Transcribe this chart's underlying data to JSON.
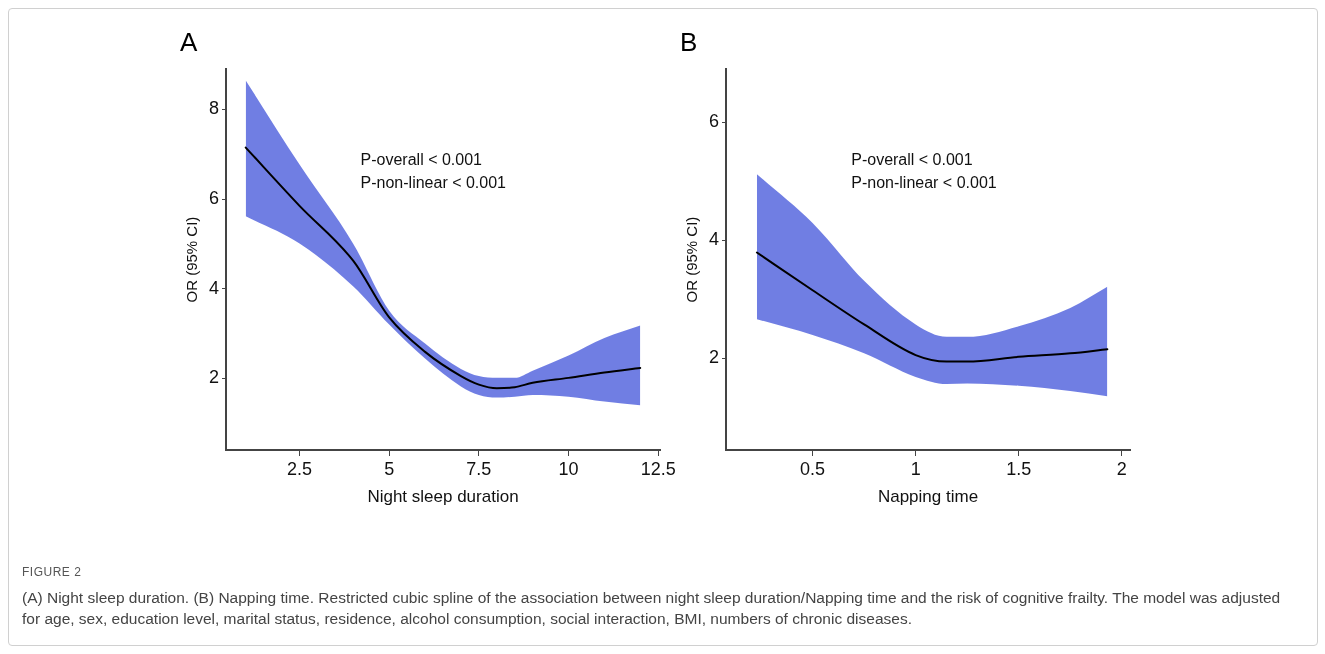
{
  "chart_data": [
    {
      "type": "line",
      "title": "A",
      "xlabel": "Night sleep duration",
      "ylabel": "OR (95% CI)",
      "xlim": [
        0.45,
        12.55
      ],
      "xticks": [
        2.5,
        5,
        7.5,
        10,
        12.5
      ],
      "ylim": [
        0.4,
        8.9
      ],
      "yticks": [
        2,
        4,
        6,
        8
      ],
      "grid": false,
      "legend": false,
      "marker": "none",
      "line_style": "solid",
      "x": [
        1,
        2.5,
        4,
        5,
        6,
        7,
        7.5,
        8,
        8.5,
        9,
        10,
        11,
        12
      ],
      "series": [
        {
          "color": "#000000",
          "values": [
            7.15,
            5.85,
            4.62,
            3.36,
            2.59,
            2.05,
            1.86,
            1.78,
            1.8,
            1.9,
            2.01,
            2.13,
            2.23
          ],
          "lower": [
            5.62,
            5.01,
            4.05,
            3.2,
            2.44,
            1.82,
            1.63,
            1.57,
            1.59,
            1.63,
            1.59,
            1.48,
            1.4
          ],
          "upper": [
            8.65,
            6.77,
            5.0,
            3.51,
            2.78,
            2.21,
            2.05,
            2.01,
            2.01,
            2.17,
            2.51,
            2.9,
            3.18
          ]
        }
      ],
      "annotations": [
        "P-overall < 0.001",
        "P-non-linear < 0.001"
      ]
    },
    {
      "type": "line",
      "title": "B",
      "xlabel": "Napping time",
      "ylabel": "OR (95% CI)",
      "xlim": [
        0.08,
        2.04
      ],
      "xticks": [
        0.5,
        1,
        1.5,
        2
      ],
      "ylim": [
        0.44,
        6.9
      ],
      "yticks": [
        2,
        4,
        6
      ],
      "grid": false,
      "legend": false,
      "marker": "none",
      "line_style": "solid",
      "x": [
        0.23,
        0.5,
        0.75,
        1,
        1.15,
        1.25,
        1.5,
        1.75,
        1.93
      ],
      "series": [
        {
          "color": "#000000",
          "values": [
            3.79,
            3.15,
            2.57,
            2.05,
            1.94,
            1.94,
            2.02,
            2.08,
            2.15
          ],
          "lower": [
            2.66,
            2.39,
            2.08,
            1.68,
            1.56,
            1.57,
            1.53,
            1.44,
            1.35
          ],
          "upper": [
            5.12,
            4.29,
            3.31,
            2.57,
            2.36,
            2.36,
            2.54,
            2.85,
            3.21
          ]
        }
      ],
      "annotations": [
        "P-overall < 0.001",
        "P-non-linear < 0.001",
        "FIGURE 2",
        "(A) Night sleep duration. (B) Napping time. Restricted cubic spline of the association between night sleep duration/Napping time and the risk of cognitive frailty. The model was adjusted for age, sex, education level, marital status, residence, alcohol consumption, social interaction, BMI, numbers of chronic diseases."
      ]
    }
  ]
}
